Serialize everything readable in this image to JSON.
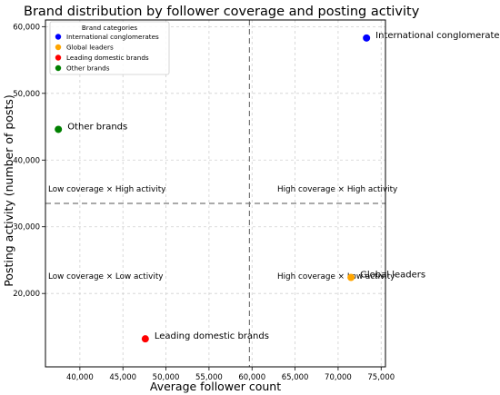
{
  "chart_data": {
    "type": "scatter",
    "title": "Brand distribution by follower coverage and posting activity",
    "xlabel": "Average follower count",
    "ylabel": "Posting activity (number of posts)",
    "xlim": [
      36000,
      75500
    ],
    "ylim": [
      9000,
      61000
    ],
    "x_ticks": [
      40000,
      45000,
      50000,
      55000,
      60000,
      65000,
      70000,
      75000
    ],
    "x_tick_labels": [
      "40,000",
      "45,000",
      "50,000",
      "55,000",
      "60,000",
      "65,000",
      "70,000",
      "75,000"
    ],
    "y_ticks": [
      20000,
      30000,
      40000,
      50000,
      60000
    ],
    "y_tick_labels": [
      "20,000",
      "30,000",
      "40,000",
      "50,000",
      "60,000"
    ],
    "grid": true,
    "legend": {
      "title": "Brand categories",
      "placement": "top-left"
    },
    "series": [
      {
        "name": "International conglomerates",
        "color": "#0000ff",
        "x": 73300,
        "y": 58300,
        "label": "International conglomerates"
      },
      {
        "name": "Global leaders",
        "color": "#ffa500",
        "x": 71500,
        "y": 22400,
        "label": "Global leaders"
      },
      {
        "name": "Leading domestic brands",
        "color": "#ff0000",
        "x": 47600,
        "y": 13200,
        "label": "Leading domestic brands"
      },
      {
        "name": "Other brands",
        "color": "#008000",
        "x": 37500,
        "y": 44600,
        "label": "Other brands"
      }
    ],
    "reference_lines": {
      "x": 59700,
      "y": 33500
    },
    "quadrant_labels": {
      "top_left": "Low coverage × High activity",
      "top_right": "High coverage × High activity",
      "bottom_left": "Low coverage × Low activity",
      "bottom_right": "High coverage × Low activity"
    }
  }
}
